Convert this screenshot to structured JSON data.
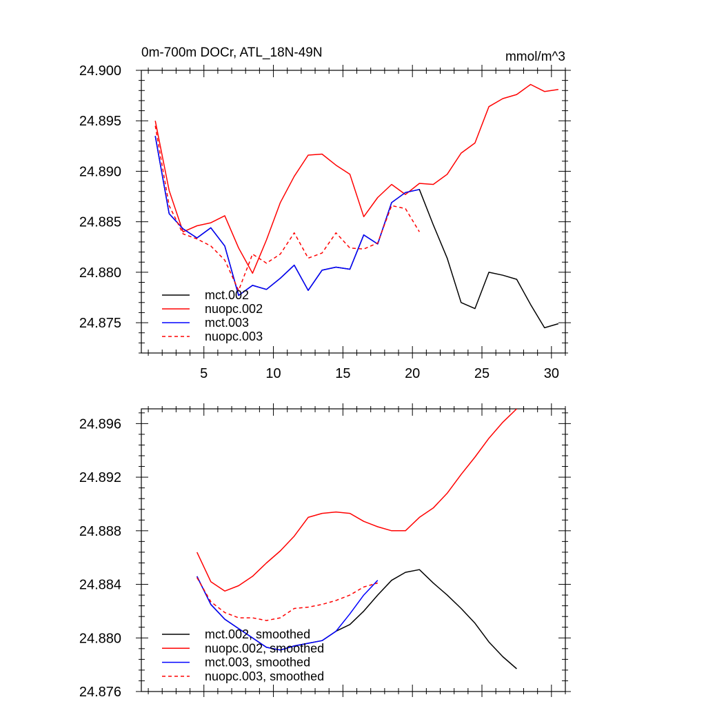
{
  "chart_data": [
    {
      "type": "line",
      "title": "0m-700m DOCr, ATL_18N-49N",
      "units_label": "mmol/m^3",
      "xlim": [
        0.5,
        31
      ],
      "ylim": [
        24.872,
        24.9
      ],
      "x_ticks": [
        5,
        10,
        15,
        20,
        25,
        30
      ],
      "y_ticks": [
        24.875,
        24.88,
        24.885,
        24.89,
        24.895,
        24.9
      ],
      "x_tick_labels": [
        "5",
        "10",
        "15",
        "20",
        "25",
        "30"
      ],
      "y_tick_labels": [
        "24.875",
        "24.880",
        "24.885",
        "24.890",
        "24.895",
        "24.900"
      ],
      "legend_position": "bottom-left",
      "series": [
        {
          "name": "mct.002",
          "color": "#000000",
          "dash": "solid",
          "x": [
            1.5,
            2.5,
            3.5,
            4.5,
            5.5,
            6.5,
            7.5,
            8.5,
            9.5,
            10.5,
            11.5,
            12.5,
            13.5,
            14.5,
            15.5,
            16.5,
            17.5,
            18.5,
            19.5,
            20.5,
            21.5,
            22.5,
            23.5,
            24.5,
            25.5,
            26.5,
            27.5,
            28.5,
            29.5,
            30.5
          ],
          "values": [
            24.8935,
            24.8858,
            24.8843,
            24.8834,
            24.8844,
            24.8826,
            24.8777,
            24.8787,
            24.8783,
            24.8794,
            24.8807,
            24.8782,
            24.8802,
            24.8805,
            24.8803,
            24.8837,
            24.8828,
            24.8869,
            24.8879,
            24.8882,
            24.8847,
            24.8814,
            24.877,
            24.8764,
            24.88,
            24.8797,
            24.8793,
            24.8768,
            24.8745,
            24.8749
          ]
        },
        {
          "name": "nuopc.002",
          "color": "#ff0000",
          "dash": "solid",
          "x": [
            1.5,
            2.5,
            3.5,
            4.5,
            5.5,
            6.5,
            7.5,
            8.5,
            9.5,
            10.5,
            11.5,
            12.5,
            13.5,
            14.5,
            15.5,
            16.5,
            17.5,
            18.5,
            19.5,
            20.5,
            21.5,
            22.5,
            23.5,
            24.5,
            25.5,
            26.5,
            27.5,
            28.5,
            29.5,
            30.5
          ],
          "values": [
            24.895,
            24.8881,
            24.884,
            24.8846,
            24.8849,
            24.8856,
            24.8824,
            24.8799,
            24.8832,
            24.8869,
            24.8895,
            24.8916,
            24.8917,
            24.8906,
            24.8897,
            24.8855,
            24.8874,
            24.8887,
            24.8877,
            24.8888,
            24.8887,
            24.8897,
            24.8918,
            24.8928,
            24.8964,
            24.8972,
            24.8976,
            24.8986,
            24.8979,
            24.8981
          ]
        },
        {
          "name": "mct.003",
          "color": "#0000ff",
          "dash": "solid",
          "x": [
            1.5,
            2.5,
            3.5,
            4.5,
            5.5,
            6.5,
            7.5,
            8.5,
            9.5,
            10.5,
            11.5,
            12.5,
            13.5,
            14.5,
            15.5,
            16.5,
            17.5,
            18.5,
            19.5,
            20.5
          ],
          "values": [
            24.8935,
            24.8858,
            24.8843,
            24.8834,
            24.8844,
            24.8826,
            24.8777,
            24.8787,
            24.8783,
            24.8794,
            24.8807,
            24.8782,
            24.8802,
            24.8805,
            24.8803,
            24.8837,
            24.8828,
            24.8869,
            24.8879,
            24.8882
          ]
        },
        {
          "name": "nuopc.003",
          "color": "#ff0000",
          "dash": "dashed",
          "x": [
            1.5,
            2.5,
            3.5,
            4.5,
            5.5,
            6.5,
            7.5,
            8.5,
            9.5,
            10.5,
            11.5,
            12.5,
            13.5,
            14.5,
            15.5,
            16.5,
            17.5,
            18.5,
            19.5,
            20.5
          ],
          "values": [
            24.8945,
            24.8866,
            24.8838,
            24.8833,
            24.8826,
            24.8812,
            24.8782,
            24.8818,
            24.8809,
            24.8818,
            24.8839,
            24.8814,
            24.8819,
            24.8839,
            24.8824,
            24.8823,
            24.8829,
            24.8866,
            24.8863,
            24.884
          ]
        }
      ]
    },
    {
      "type": "line",
      "xlim": [
        0.5,
        31
      ],
      "ylim": [
        24.876,
        24.8971
      ],
      "x_ticks": [
        5,
        10,
        15,
        20,
        25,
        30
      ],
      "y_ticks": [
        24.876,
        24.88,
        24.884,
        24.888,
        24.892,
        24.896
      ],
      "x_tick_labels": [],
      "y_tick_labels": [
        "24.876",
        "24.880",
        "24.884",
        "24.888",
        "24.892",
        "24.896"
      ],
      "legend_position": "bottom-left",
      "series": [
        {
          "name": "mct.002, smoothed",
          "color": "#000000",
          "dash": "solid",
          "x": [
            4.5,
            5.5,
            6.5,
            7.5,
            8.5,
            9.5,
            10.5,
            11.5,
            12.5,
            13.5,
            14.5,
            15.5,
            16.5,
            17.5,
            18.5,
            19.5,
            20.5,
            21.5,
            22.5,
            23.5,
            24.5,
            25.5,
            26.5,
            27.5
          ],
          "values": [
            24.8846,
            24.8825,
            24.8814,
            24.8807,
            24.88,
            24.8793,
            24.8791,
            24.8794,
            24.8796,
            24.8798,
            24.8805,
            24.881,
            24.882,
            24.8832,
            24.8843,
            24.8849,
            24.8851,
            24.8841,
            24.8832,
            24.8822,
            24.8811,
            24.8797,
            24.8786,
            24.8777
          ]
        },
        {
          "name": "nuopc.002, smoothed",
          "color": "#ff0000",
          "dash": "solid",
          "x": [
            4.5,
            5.5,
            6.5,
            7.5,
            8.5,
            9.5,
            10.5,
            11.5,
            12.5,
            13.5,
            14.5,
            15.5,
            16.5,
            17.5,
            18.5,
            19.5,
            20.5,
            21.5,
            22.5,
            23.5,
            24.5,
            25.5,
            26.5,
            27.5
          ],
          "values": [
            24.8864,
            24.8842,
            24.8835,
            24.8839,
            24.8846,
            24.8856,
            24.8865,
            24.8876,
            24.889,
            24.8893,
            24.8894,
            24.8893,
            24.8887,
            24.8883,
            24.888,
            24.888,
            24.889,
            24.8897,
            24.8908,
            24.8922,
            24.8935,
            24.8949,
            24.8961,
            24.8971
          ]
        },
        {
          "name": "mct.003, smoothed",
          "color": "#0000ff",
          "dash": "solid",
          "x": [
            4.5,
            5.5,
            6.5,
            7.5,
            8.5,
            9.5,
            10.5,
            11.5,
            12.5,
            13.5,
            14.5,
            15.5,
            16.5,
            17.5
          ],
          "values": [
            24.8846,
            24.8825,
            24.8814,
            24.8807,
            24.88,
            24.8793,
            24.8791,
            24.8794,
            24.8796,
            24.8798,
            24.8805,
            24.8818,
            24.8832,
            24.8843
          ]
        },
        {
          "name": "nuopc.003, smoothed",
          "color": "#ff0000",
          "dash": "dashed",
          "x": [
            4.5,
            5.5,
            6.5,
            7.5,
            8.5,
            9.5,
            10.5,
            11.5,
            12.5,
            13.5,
            14.5,
            15.5,
            16.5,
            17.5
          ],
          "values": [
            24.8845,
            24.8827,
            24.8819,
            24.8815,
            24.8815,
            24.8813,
            24.8815,
            24.8822,
            24.8823,
            24.8825,
            24.8828,
            24.8832,
            24.8838,
            24.8841
          ]
        }
      ]
    }
  ]
}
